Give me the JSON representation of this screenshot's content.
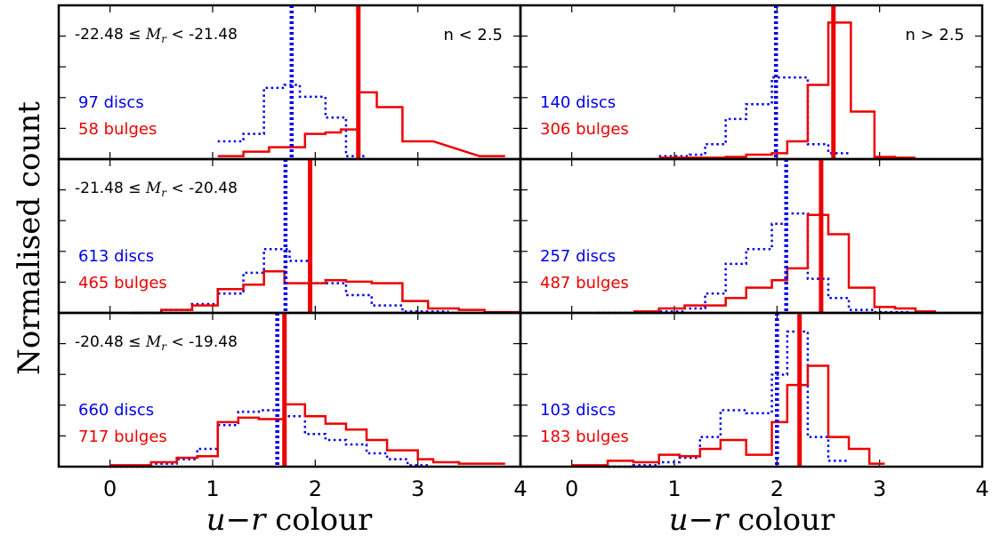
{
  "chart_data": {
    "type": "histogram-grid",
    "ylabel": "Normalised count",
    "xlabel_var": "u−r",
    "xlabel_word": " colour",
    "xlim": [
      -0.5,
      4.0
    ],
    "xticks": [
      "0",
      "1",
      "2",
      "3",
      "4"
    ],
    "colors": {
      "discs": "#0000ee",
      "bulges": "#ee0000"
    },
    "columns": [
      {
        "label": "n < 2.5"
      },
      {
        "label": "n > 2.5"
      }
    ],
    "rows": [
      {
        "range_lo": "-22.48",
        "leq": "≤",
        "mag": "M",
        "sub": "r",
        "lt": "<",
        "range_hi": "-21.48"
      },
      {
        "range_lo": "-21.48",
        "leq": "≤",
        "mag": "M",
        "sub": "r",
        "lt": "<",
        "range_hi": "-20.48"
      },
      {
        "range_lo": "-20.48",
        "leq": "≤",
        "mag": "M",
        "sub": "r",
        "lt": "<",
        "range_hi": "-19.48"
      }
    ],
    "panels": [
      {
        "row": 0,
        "col": 0,
        "discs_label": "97 discs",
        "bulges_label": "58 bulges",
        "disc_median": 1.77,
        "bulge_median": 2.42,
        "ymax": 1.0,
        "disc_hist": [
          [
            1.05,
            1.3,
            0.12
          ],
          [
            1.3,
            1.5,
            0.17
          ],
          [
            1.5,
            1.7,
            0.48
          ],
          [
            1.7,
            1.85,
            0.5
          ],
          [
            1.85,
            2.1,
            0.42
          ],
          [
            2.1,
            2.3,
            0.28
          ],
          [
            2.3,
            2.5,
            0.02
          ]
        ],
        "bulge_hist": [
          [
            1.05,
            1.3,
            0.02
          ],
          [
            1.3,
            1.55,
            0.05
          ],
          [
            1.55,
            1.9,
            0.08
          ],
          [
            1.9,
            2.1,
            0.17
          ],
          [
            2.1,
            2.25,
            0.18
          ],
          [
            2.25,
            2.42,
            0.2
          ],
          [
            2.42,
            2.6,
            0.45
          ],
          [
            2.6,
            2.85,
            0.35
          ],
          [
            2.85,
            3.15,
            0.12
          ],
          [
            3.6,
            3.85,
            0.02
          ]
        ]
      },
      {
        "row": 0,
        "col": 1,
        "discs_label": "140 discs",
        "bulges_label": "306 bulges",
        "disc_median": 1.99,
        "bulge_median": 2.55,
        "ymax": 1.0,
        "disc_hist": [
          [
            0.85,
            1.15,
            0.02
          ],
          [
            1.15,
            1.3,
            0.03
          ],
          [
            1.3,
            1.5,
            0.1
          ],
          [
            1.5,
            1.7,
            0.27
          ],
          [
            1.7,
            1.95,
            0.37
          ],
          [
            1.95,
            2.3,
            0.55
          ],
          [
            2.3,
            2.5,
            0.1
          ],
          [
            2.5,
            2.7,
            0.04
          ]
        ],
        "bulge_hist": [
          [
            0.85,
            1.15,
            0.01
          ],
          [
            1.15,
            1.3,
            0.01
          ],
          [
            1.3,
            1.5,
            0.01
          ],
          [
            1.5,
            1.7,
            0.015
          ],
          [
            1.7,
            1.95,
            0.03
          ],
          [
            1.95,
            2.1,
            0.04
          ],
          [
            2.1,
            2.3,
            0.12
          ],
          [
            2.3,
            2.5,
            0.5
          ],
          [
            2.5,
            2.72,
            0.92
          ],
          [
            2.72,
            2.95,
            0.32
          ],
          [
            2.95,
            3.15,
            0.015
          ],
          [
            3.15,
            3.35,
            0.01
          ]
        ]
      },
      {
        "row": 1,
        "col": 0,
        "discs_label": "613 discs",
        "bulges_label": "465 bulges",
        "disc_median": 1.71,
        "bulge_median": 1.95,
        "ymax": 1.0,
        "disc_hist": [
          [
            0.2,
            0.5,
            0.0
          ],
          [
            0.5,
            0.8,
            0.02
          ],
          [
            0.8,
            1.05,
            0.06
          ],
          [
            1.05,
            1.3,
            0.13
          ],
          [
            1.3,
            1.5,
            0.27
          ],
          [
            1.5,
            1.75,
            0.43
          ],
          [
            1.75,
            1.95,
            0.35
          ],
          [
            1.95,
            2.15,
            0.2
          ],
          [
            2.15,
            2.3,
            0.2
          ],
          [
            2.3,
            2.55,
            0.12
          ],
          [
            2.55,
            2.85,
            0.05
          ],
          [
            2.85,
            3.3,
            0.01
          ]
        ],
        "bulge_hist": [
          [
            0.2,
            0.5,
            0.0
          ],
          [
            0.5,
            0.8,
            0.02
          ],
          [
            0.8,
            1.05,
            0.05
          ],
          [
            1.05,
            1.3,
            0.16
          ],
          [
            1.3,
            1.5,
            0.19
          ],
          [
            1.5,
            1.7,
            0.28
          ],
          [
            1.7,
            1.95,
            0.2
          ],
          [
            1.95,
            2.1,
            0.2
          ],
          [
            2.1,
            2.3,
            0.22
          ],
          [
            2.3,
            2.55,
            0.21
          ],
          [
            2.55,
            2.85,
            0.2
          ],
          [
            2.85,
            3.1,
            0.08
          ],
          [
            3.1,
            3.4,
            0.03
          ],
          [
            3.4,
            3.65,
            0.02
          ],
          [
            3.65,
            4.0,
            0.005
          ]
        ]
      },
      {
        "row": 1,
        "col": 1,
        "discs_label": "257 discs",
        "bulges_label": "487 bulges",
        "disc_median": 2.09,
        "bulge_median": 2.43,
        "ymax": 1.0,
        "disc_hist": [
          [
            0.25,
            0.6,
            0.0
          ],
          [
            0.6,
            0.85,
            0.0
          ],
          [
            0.85,
            1.1,
            0.01
          ],
          [
            1.1,
            1.3,
            0.03
          ],
          [
            1.3,
            1.5,
            0.13
          ],
          [
            1.5,
            1.7,
            0.33
          ],
          [
            1.7,
            1.95,
            0.43
          ],
          [
            1.95,
            2.1,
            0.6
          ],
          [
            2.1,
            2.3,
            0.67
          ],
          [
            2.3,
            2.5,
            0.23
          ],
          [
            2.5,
            2.7,
            0.1
          ],
          [
            2.7,
            2.95,
            0.02
          ],
          [
            2.95,
            3.3,
            0.005
          ]
        ],
        "bulge_hist": [
          [
            0.6,
            0.85,
            0.01
          ],
          [
            0.85,
            1.1,
            0.03
          ],
          [
            1.1,
            1.5,
            0.05
          ],
          [
            1.5,
            1.7,
            0.1
          ],
          [
            1.7,
            1.95,
            0.17
          ],
          [
            1.95,
            2.1,
            0.22
          ],
          [
            2.1,
            2.3,
            0.3
          ],
          [
            2.3,
            2.5,
            0.66
          ],
          [
            2.5,
            2.7,
            0.53
          ],
          [
            2.7,
            2.95,
            0.17
          ],
          [
            2.95,
            3.15,
            0.04
          ],
          [
            3.15,
            3.35,
            0.03
          ],
          [
            3.35,
            3.55,
            0.01
          ]
        ]
      },
      {
        "row": 2,
        "col": 0,
        "discs_label": "660 discs",
        "bulges_label": "717 bulges",
        "disc_median": 1.63,
        "bulge_median": 1.7,
        "ymax": 1.0,
        "disc_hist": [
          [
            0.0,
            0.4,
            0.0
          ],
          [
            0.4,
            0.65,
            0.02
          ],
          [
            0.65,
            0.85,
            0.05
          ],
          [
            0.85,
            1.05,
            0.12
          ],
          [
            1.05,
            1.25,
            0.28
          ],
          [
            1.25,
            1.45,
            0.37
          ],
          [
            1.45,
            1.7,
            0.38
          ],
          [
            1.7,
            1.9,
            0.34
          ],
          [
            1.9,
            2.1,
            0.22
          ],
          [
            2.1,
            2.3,
            0.18
          ],
          [
            2.3,
            2.5,
            0.15
          ],
          [
            2.5,
            2.7,
            0.09
          ],
          [
            2.7,
            2.9,
            0.05
          ],
          [
            2.9,
            3.1,
            0.01
          ]
        ],
        "bulge_hist": [
          [
            0.0,
            0.4,
            0.01
          ],
          [
            0.4,
            0.65,
            0.03
          ],
          [
            0.65,
            0.85,
            0.06
          ],
          [
            0.85,
            1.05,
            0.07
          ],
          [
            1.05,
            1.25,
            0.3
          ],
          [
            1.25,
            1.45,
            0.33
          ],
          [
            1.45,
            1.7,
            0.32
          ],
          [
            1.7,
            1.9,
            0.42
          ],
          [
            1.9,
            2.1,
            0.34
          ],
          [
            2.1,
            2.3,
            0.29
          ],
          [
            2.3,
            2.5,
            0.25
          ],
          [
            2.5,
            2.7,
            0.18
          ],
          [
            2.7,
            3.0,
            0.11
          ],
          [
            3.0,
            3.15,
            0.05
          ],
          [
            3.15,
            3.4,
            0.03
          ],
          [
            3.4,
            3.65,
            0.02
          ],
          [
            3.65,
            3.85,
            0.02
          ]
        ]
      },
      {
        "row": 2,
        "col": 1,
        "discs_label": "103 discs",
        "bulges_label": "183 bulges",
        "disc_median": 2.0,
        "bulge_median": 2.22,
        "ymax": 1.0,
        "disc_hist": [
          [
            0.35,
            0.6,
            0.0
          ],
          [
            0.6,
            0.85,
            0.01
          ],
          [
            0.85,
            1.05,
            0.03
          ],
          [
            1.05,
            1.25,
            0.06
          ],
          [
            1.25,
            1.45,
            0.2
          ],
          [
            1.45,
            1.7,
            0.38
          ],
          [
            1.7,
            1.95,
            0.36
          ],
          [
            1.95,
            2.1,
            0.62
          ],
          [
            2.1,
            2.3,
            0.91
          ],
          [
            2.3,
            2.5,
            0.2
          ],
          [
            2.5,
            2.7,
            0.04
          ]
        ],
        "bulge_hist": [
          [
            0.0,
            0.35,
            0.01
          ],
          [
            0.35,
            0.6,
            0.04
          ],
          [
            0.6,
            0.85,
            0.03
          ],
          [
            0.85,
            1.05,
            0.08
          ],
          [
            1.05,
            1.25,
            0.07
          ],
          [
            1.25,
            1.45,
            0.12
          ],
          [
            1.45,
            1.7,
            0.18
          ],
          [
            1.7,
            1.95,
            0.08
          ],
          [
            1.95,
            2.1,
            0.3
          ],
          [
            2.1,
            2.3,
            0.55
          ],
          [
            2.3,
            2.5,
            0.68
          ],
          [
            2.5,
            2.7,
            0.2
          ],
          [
            2.7,
            2.9,
            0.12
          ],
          [
            2.9,
            3.05,
            0.02
          ]
        ]
      }
    ]
  }
}
